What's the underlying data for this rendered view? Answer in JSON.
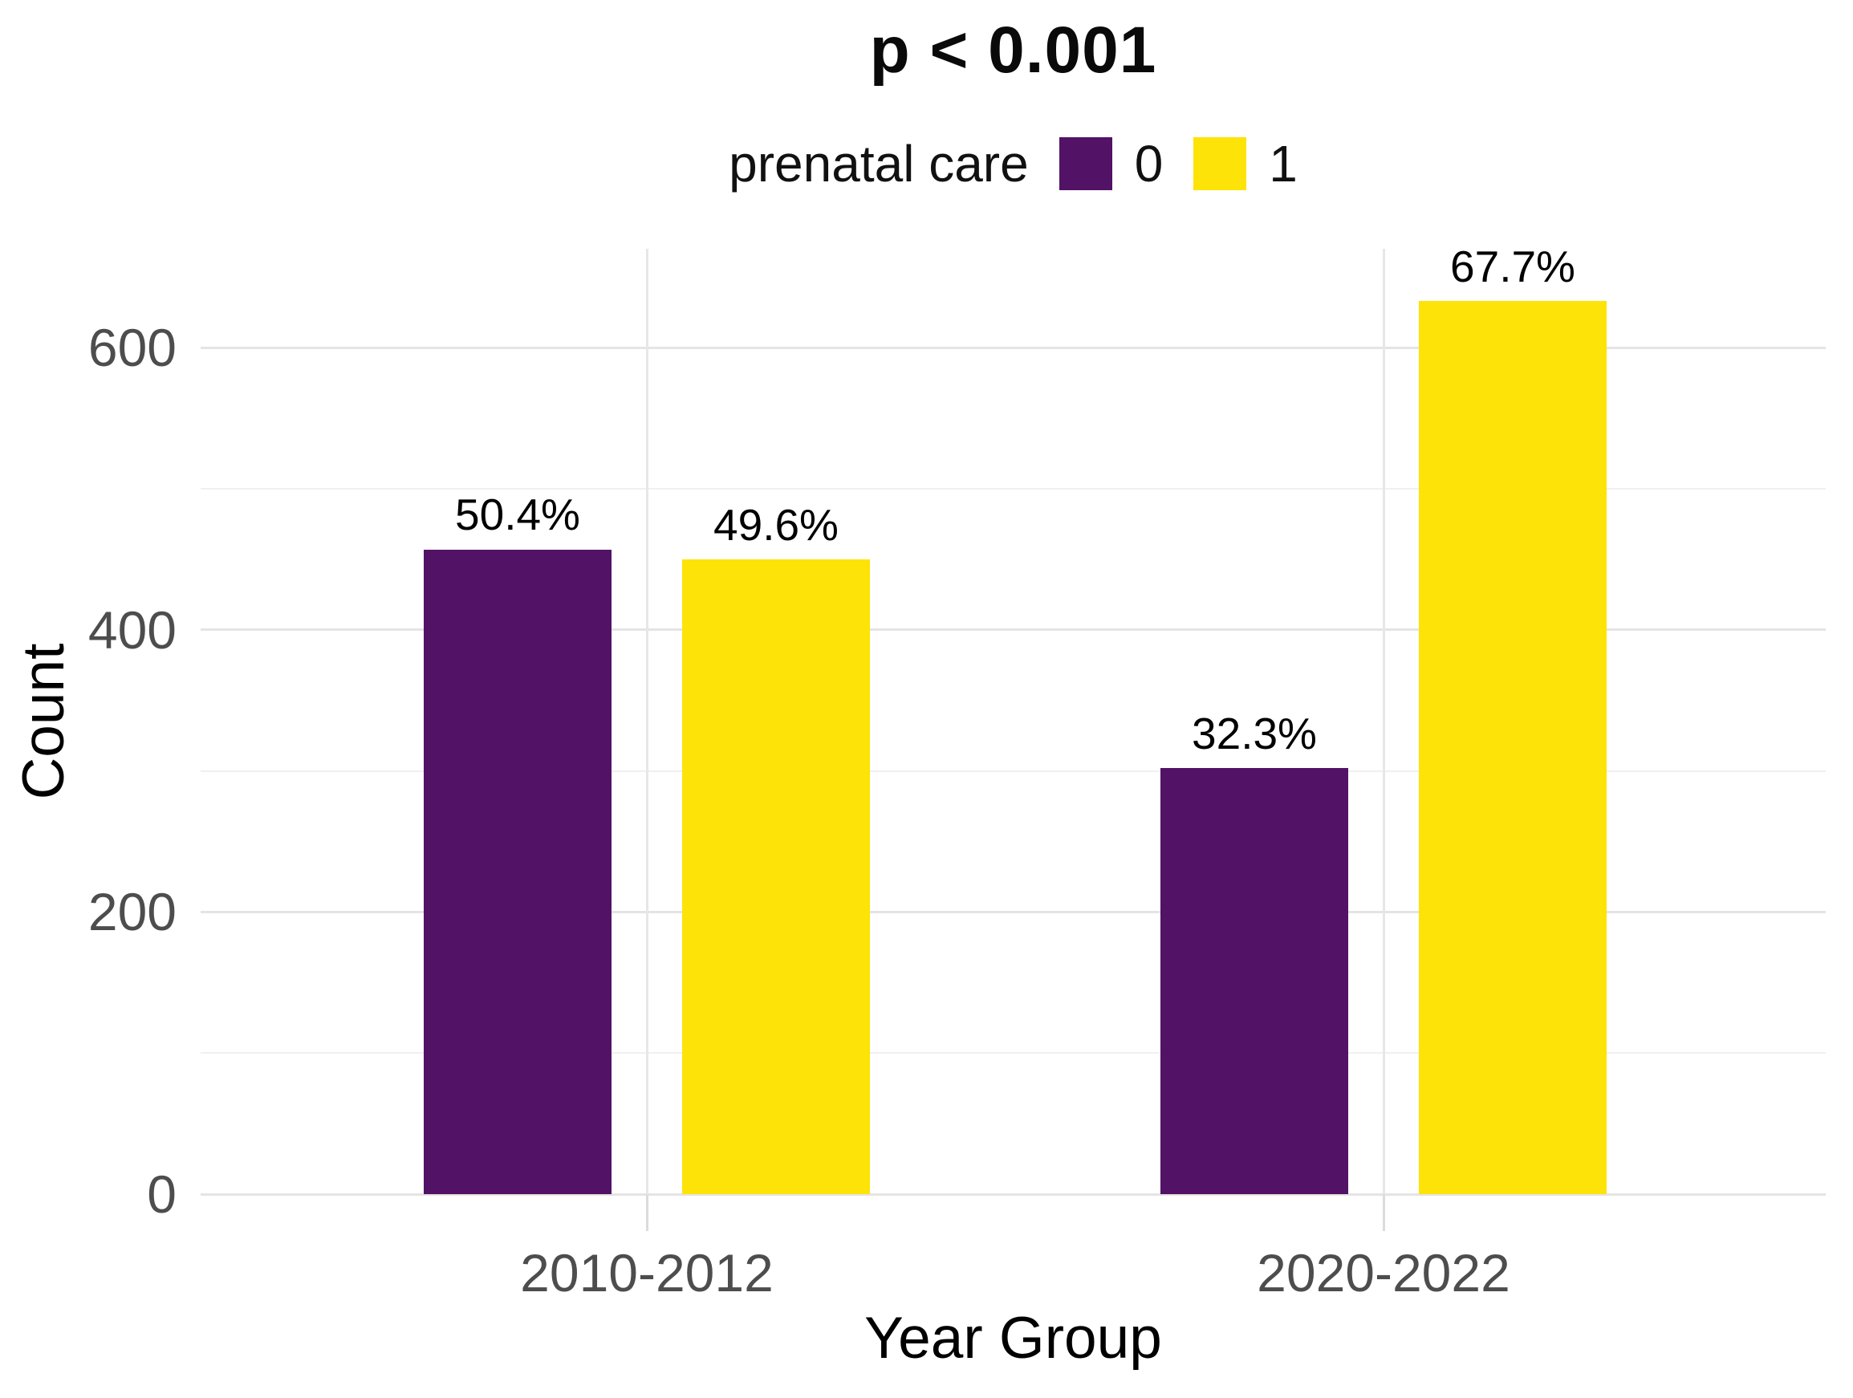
{
  "chart_data": {
    "type": "bar",
    "title": "p < 0.001",
    "legend_title": "prenatal care",
    "legend_position": "top",
    "categories": [
      "2010-2012",
      "2020-2022"
    ],
    "series": [
      {
        "name": "0",
        "color": "#521266",
        "values": [
          457,
          302
        ],
        "bar_labels": [
          "50.4%",
          "32.3%"
        ]
      },
      {
        "name": "1",
        "color": "#FDE308",
        "values": [
          450,
          633
        ],
        "bar_labels": [
          "49.6%",
          "67.7%"
        ]
      }
    ],
    "xlabel": "Year Group",
    "ylabel": "Count",
    "yticks": [
      0,
      200,
      400,
      600
    ],
    "ylim": [
      0,
      670
    ],
    "grid_major": [
      0,
      200,
      400,
      600
    ],
    "grid_minor": [
      100,
      300,
      500
    ],
    "grid": "on",
    "bar_label_unit": "percent of year group"
  },
  "colors": {
    "background": "#ffffff",
    "grid_major": "#e4e4e4",
    "grid_minor": "#f0f0f0",
    "grid_vertical": "#e7e7e7",
    "axis_tick": "#dcdcdc",
    "tick_label": "#4d4d4d",
    "text": "#000000",
    "series_0": "#521266",
    "series_1": "#FDE308"
  }
}
